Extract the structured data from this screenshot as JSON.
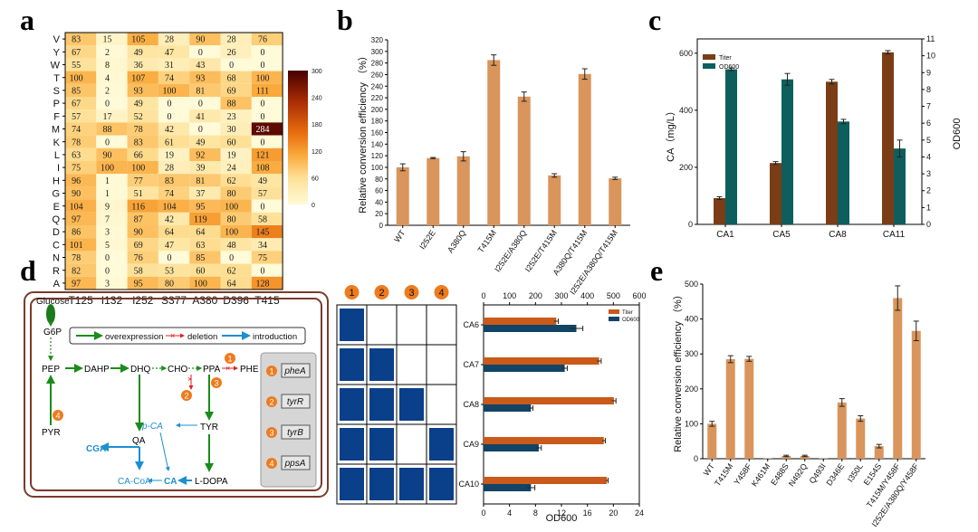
{
  "panels": {
    "a": "a",
    "b": "b",
    "c": "c",
    "d": "d",
    "e": "e"
  },
  "colors": {
    "bar_orange": "#d9955c",
    "brown": "#7a3d16",
    "teal": "#0e5e5e",
    "titer_orange": "#c95a1a",
    "od_blue": "#114466",
    "navy_block": "#0a3f8a",
    "green": "#1a8c1a",
    "blue": "#1c8fd0",
    "red": "#e02020",
    "step": "#ee7b1e"
  },
  "chart_data": [
    {
      "panel": "a",
      "type": "heatmap",
      "rows": [
        "V",
        "Y",
        "W",
        "T",
        "S",
        "P",
        "F",
        "M",
        "K",
        "L",
        "I",
        "H",
        "G",
        "E",
        "Q",
        "D",
        "C",
        "N",
        "R",
        "A"
      ],
      "columns": [
        "T125",
        "I132",
        "I252",
        "S377",
        "A380",
        "D396",
        "T415"
      ],
      "values": [
        [
          83,
          15,
          105,
          28,
          90,
          28,
          76
        ],
        [
          67,
          2,
          49,
          47,
          0,
          26,
          0
        ],
        [
          55,
          8,
          36,
          31,
          43,
          0,
          0
        ],
        [
          100,
          4,
          107,
          74,
          93,
          68,
          100
        ],
        [
          85,
          2,
          93,
          100,
          81,
          69,
          111
        ],
        [
          67,
          0,
          49,
          0,
          0,
          88,
          0
        ],
        [
          57,
          17,
          52,
          0,
          41,
          23,
          0
        ],
        [
          74,
          88,
          78,
          42,
          0,
          30,
          284
        ],
        [
          78,
          0,
          83,
          61,
          49,
          60,
          0
        ],
        [
          63,
          90,
          66,
          19,
          92,
          19,
          121
        ],
        [
          75,
          100,
          100,
          28,
          39,
          24,
          108
        ],
        [
          96,
          1,
          77,
          83,
          81,
          62,
          49
        ],
        [
          90,
          1,
          51,
          74,
          37,
          80,
          57
        ],
        [
          104,
          9,
          116,
          104,
          95,
          100,
          0
        ],
        [
          97,
          7,
          87,
          42,
          119,
          80,
          58
        ],
        [
          86,
          3,
          90,
          64,
          64,
          100,
          145
        ],
        [
          101,
          5,
          69,
          47,
          63,
          48,
          34
        ],
        [
          78,
          0,
          76,
          0,
          85,
          0,
          75
        ],
        [
          82,
          0,
          58,
          53,
          60,
          62,
          0
        ],
        [
          97,
          3,
          95,
          80,
          100,
          64,
          128
        ]
      ],
      "colorbar_ticks": [
        0,
        60,
        120,
        180,
        240,
        300
      ],
      "colorbar_range": [
        0,
        300
      ]
    },
    {
      "panel": "b",
      "type": "bar",
      "ylabel": "Relative conversion efficiency （%）",
      "ylim": [
        0,
        320
      ],
      "yticks": [
        0,
        20,
        40,
        60,
        80,
        100,
        120,
        140,
        160,
        180,
        200,
        220,
        240,
        260,
        280,
        300,
        320
      ],
      "categories": [
        "WT",
        "I252E",
        "A380Q",
        "T415M",
        "I252E/A380Q",
        "I252E/T415M",
        "A380Q/T415M",
        "I252E/A380Q/T415M"
      ],
      "values": [
        100,
        116,
        119,
        285,
        222,
        86,
        261,
        81
      ],
      "errors": [
        6,
        1,
        8,
        9,
        8,
        3,
        9,
        2
      ]
    },
    {
      "panel": "c",
      "type": "bar",
      "ylabel": "CA（mg/L）",
      "y2label": "OD600",
      "ylim": [
        0,
        650
      ],
      "yticks": [
        0,
        200,
        400,
        600
      ],
      "y2lim": [
        0,
        11
      ],
      "y2ticks": [
        0,
        1,
        2,
        3,
        4,
        5,
        6,
        7,
        8,
        9,
        10,
        11
      ],
      "categories": [
        "CA1",
        "CA5",
        "CA8",
        "CA11"
      ],
      "series": [
        {
          "name": "Titer",
          "values": [
            92,
            215,
            500,
            603
          ],
          "errors": [
            5,
            5,
            8,
            6
          ]
        },
        {
          "name": "OD600",
          "values": [
            9.2,
            8.6,
            6.1,
            4.5
          ],
          "errors": [
            0.08,
            0.35,
            0.13,
            0.5
          ]
        }
      ]
    },
    {
      "panel": "d",
      "type": "bar",
      "orientation": "horizontal",
      "xlabel": "OD600",
      "top_axis_ticks": [
        0,
        100,
        200,
        300,
        400,
        500,
        600
      ],
      "bottom_axis_ticks": [
        0,
        4,
        8,
        12,
        16,
        20,
        24
      ],
      "categories": [
        "CA6",
        "CA7",
        "CA8",
        "CA9",
        "CA10"
      ],
      "series": [
        {
          "name": "Titer",
          "values": [
            280,
            445,
            502,
            463,
            475
          ],
          "errors": [
            8,
            8,
            8,
            6,
            5
          ]
        },
        {
          "name": "OD600",
          "values": [
            14.3,
            12.5,
            7.3,
            8.5,
            7.3
          ],
          "errors": [
            1.0,
            0.4,
            0.3,
            0.4,
            0.6
          ]
        }
      ]
    },
    {
      "panel": "e",
      "type": "bar",
      "ylabel": "Relative conversion efficiency （%）",
      "ylim": [
        0,
        500
      ],
      "yticks": [
        0,
        100,
        200,
        300,
        400,
        500
      ],
      "categories": [
        "WT",
        "T415M",
        "Y458F",
        "K461M",
        "E488S",
        "N492Q",
        "Q493I",
        "D346E",
        "I350L",
        "E154S",
        "T415M/Y458F",
        "I252E/A380Q/Y458F"
      ],
      "values": [
        100,
        285,
        286,
        1,
        8,
        8,
        1,
        161,
        115,
        36,
        460,
        366
      ],
      "errors": [
        7,
        10,
        7,
        0,
        2,
        2,
        0,
        11,
        8,
        5,
        35,
        28
      ]
    }
  ],
  "pathway": {
    "labels": {
      "glucose": "Glucose",
      "g6p": "G6P",
      "pep": "PEP",
      "dahp": "DAHP",
      "dhq": "DHQ",
      "cho": "CHO",
      "ppa": "PPA",
      "phe": "PHE",
      "pyr": "PYR",
      "qa": "QA",
      "tyr": "TYR",
      "pca": "p-CA",
      "cga": "CGA",
      "cacoa": "CA-CoA",
      "ca": "CA",
      "ldopa": "L-DOPA"
    },
    "legend": {
      "overexpression": "overexpression",
      "deletion": "deletion",
      "introduction": "introduction"
    },
    "genes": [
      {
        "num": "1",
        "name": "pheA"
      },
      {
        "num": "2",
        "name": "tyrR"
      },
      {
        "num": "3",
        "name": "tyrB"
      },
      {
        "num": "4",
        "name": "ppsA"
      }
    ]
  },
  "matrix": {
    "headers": [
      "1",
      "2",
      "3",
      "4"
    ],
    "rows": [
      [
        1,
        0,
        0,
        0
      ],
      [
        1,
        1,
        0,
        0
      ],
      [
        1,
        1,
        1,
        0
      ],
      [
        1,
        1,
        0,
        1
      ],
      [
        1,
        1,
        1,
        1
      ]
    ]
  }
}
